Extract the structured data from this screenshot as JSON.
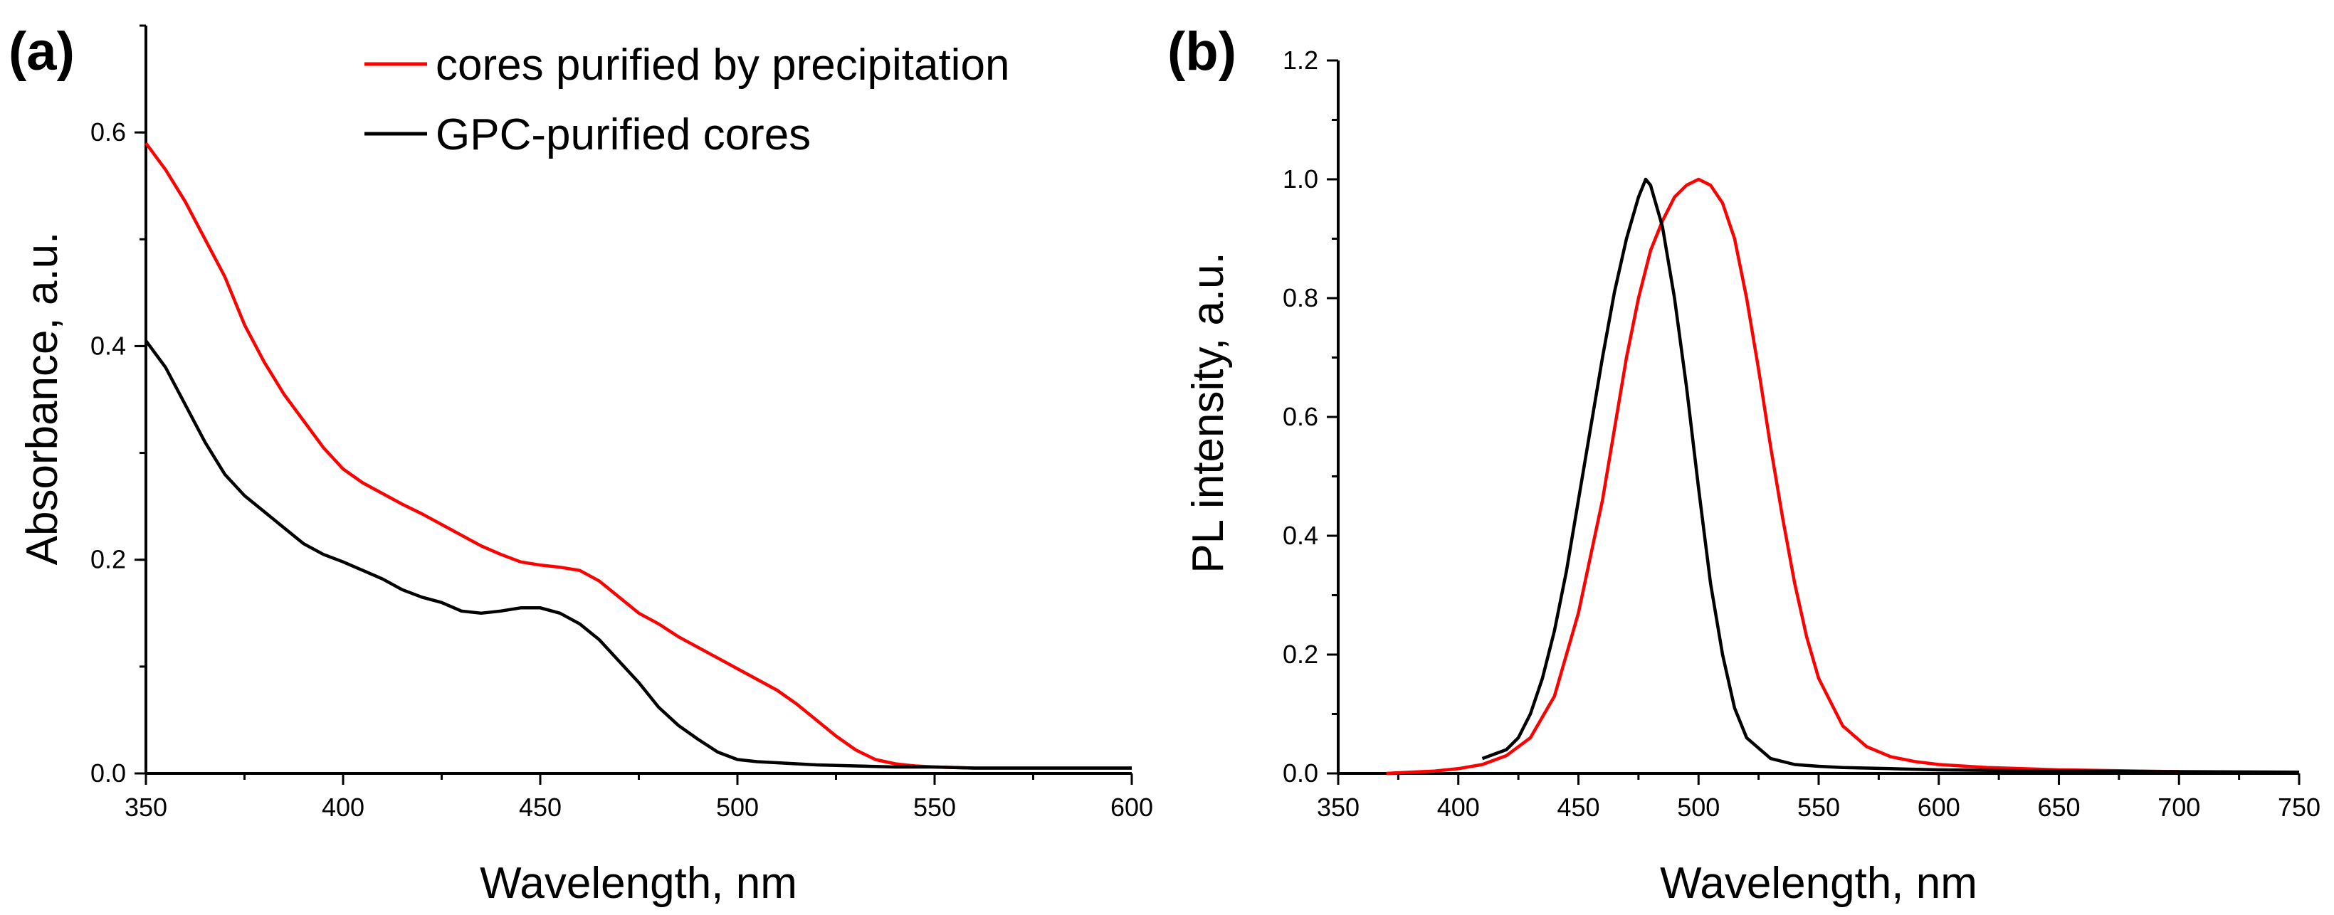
{
  "chart_data": [
    {
      "panel": "(a)",
      "type": "line",
      "xlabel": "Wavelength, nm",
      "ylabel": "Absorbance, a.u.",
      "xlim": [
        350,
        600
      ],
      "ylim": [
        0,
        0.7
      ],
      "xticks": [
        350,
        400,
        450,
        500,
        550,
        600
      ],
      "xtick_labels": [
        "350",
        "400",
        "450",
        "500",
        "550",
        "600"
      ],
      "yticks": [
        0.0,
        0.2,
        0.4,
        0.6
      ],
      "ytick_labels": [
        "0.0",
        "0.2",
        "0.4",
        "0.6"
      ],
      "grid": false,
      "legend_position": "top-center",
      "series": [
        {
          "name": "cores purified by precipitation",
          "color": "#ff0000",
          "x": [
            350,
            355,
            360,
            365,
            370,
            375,
            380,
            385,
            390,
            395,
            400,
            405,
            410,
            415,
            420,
            425,
            430,
            435,
            440,
            445,
            450,
            455,
            460,
            465,
            470,
            475,
            480,
            485,
            490,
            495,
            500,
            505,
            510,
            515,
            520,
            525,
            530,
            535,
            540,
            545,
            550,
            560,
            570,
            580,
            590,
            600
          ],
          "y": [
            0.59,
            0.565,
            0.535,
            0.5,
            0.465,
            0.42,
            0.385,
            0.355,
            0.33,
            0.305,
            0.285,
            0.272,
            0.262,
            0.252,
            0.243,
            0.233,
            0.223,
            0.213,
            0.205,
            0.198,
            0.195,
            0.193,
            0.19,
            0.18,
            0.165,
            0.15,
            0.14,
            0.128,
            0.118,
            0.108,
            0.098,
            0.088,
            0.078,
            0.065,
            0.05,
            0.035,
            0.022,
            0.013,
            0.009,
            0.007,
            0.006,
            0.005,
            0.005,
            0.005,
            0.005,
            0.005
          ]
        },
        {
          "name": "GPC-purified cores",
          "color": "#000000",
          "x": [
            350,
            355,
            360,
            365,
            370,
            375,
            380,
            385,
            390,
            395,
            400,
            405,
            410,
            415,
            420,
            425,
            430,
            435,
            440,
            445,
            450,
            455,
            460,
            465,
            470,
            475,
            480,
            485,
            490,
            495,
            500,
            505,
            510,
            520,
            530,
            540,
            550,
            560,
            570,
            580,
            590,
            600
          ],
          "y": [
            0.405,
            0.38,
            0.345,
            0.31,
            0.28,
            0.26,
            0.245,
            0.23,
            0.215,
            0.205,
            0.198,
            0.19,
            0.182,
            0.172,
            0.165,
            0.16,
            0.152,
            0.15,
            0.152,
            0.155,
            0.155,
            0.15,
            0.14,
            0.125,
            0.105,
            0.085,
            0.062,
            0.045,
            0.032,
            0.02,
            0.013,
            0.011,
            0.01,
            0.008,
            0.007,
            0.006,
            0.006,
            0.005,
            0.005,
            0.005,
            0.005,
            0.005
          ]
        }
      ]
    },
    {
      "panel": "(b)",
      "type": "line",
      "xlabel": "Wavelength, nm",
      "ylabel": "PL intensity, a.u.",
      "xlim": [
        350,
        750
      ],
      "ylim": [
        0,
        1.2
      ],
      "xticks": [
        350,
        400,
        450,
        500,
        550,
        600,
        650,
        700,
        750
      ],
      "xtick_labels": [
        "350",
        "400",
        "450",
        "500",
        "550",
        "600",
        "650",
        "700",
        "750"
      ],
      "yticks": [
        0.0,
        0.2,
        0.4,
        0.6,
        0.8,
        1.0,
        1.2
      ],
      "ytick_labels": [
        "0.0",
        "0.2",
        "0.4",
        "0.6",
        "0.8",
        "1.0",
        "1.2"
      ],
      "grid": false,
      "series": [
        {
          "name": "cores purified by precipitation",
          "color": "#ff0000",
          "x": [
            370,
            380,
            390,
            400,
            410,
            420,
            430,
            440,
            450,
            460,
            470,
            475,
            480,
            485,
            490,
            495,
            500,
            505,
            510,
            515,
            520,
            525,
            530,
            535,
            540,
            545,
            550,
            560,
            570,
            580,
            590,
            600,
            620,
            650,
            700
          ],
          "y": [
            0.0,
            0.002,
            0.004,
            0.008,
            0.015,
            0.03,
            0.06,
            0.13,
            0.27,
            0.46,
            0.7,
            0.8,
            0.88,
            0.93,
            0.97,
            0.99,
            1.0,
            0.99,
            0.96,
            0.9,
            0.8,
            0.68,
            0.55,
            0.43,
            0.32,
            0.23,
            0.16,
            0.08,
            0.045,
            0.028,
            0.02,
            0.015,
            0.01,
            0.006,
            0.003
          ]
        },
        {
          "name": "GPC-purified cores",
          "color": "#000000",
          "x": [
            410,
            420,
            425,
            430,
            435,
            440,
            445,
            450,
            455,
            460,
            465,
            470,
            475,
            478,
            480,
            485,
            490,
            495,
            500,
            505,
            510,
            515,
            520,
            530,
            540,
            550,
            560,
            580,
            600,
            650,
            700,
            750
          ],
          "y": [
            0.025,
            0.04,
            0.06,
            0.1,
            0.16,
            0.24,
            0.34,
            0.46,
            0.58,
            0.7,
            0.81,
            0.9,
            0.97,
            1.0,
            0.99,
            0.92,
            0.8,
            0.65,
            0.48,
            0.32,
            0.2,
            0.11,
            0.06,
            0.025,
            0.015,
            0.012,
            0.01,
            0.008,
            0.006,
            0.004,
            0.003,
            0.002
          ]
        }
      ]
    }
  ]
}
